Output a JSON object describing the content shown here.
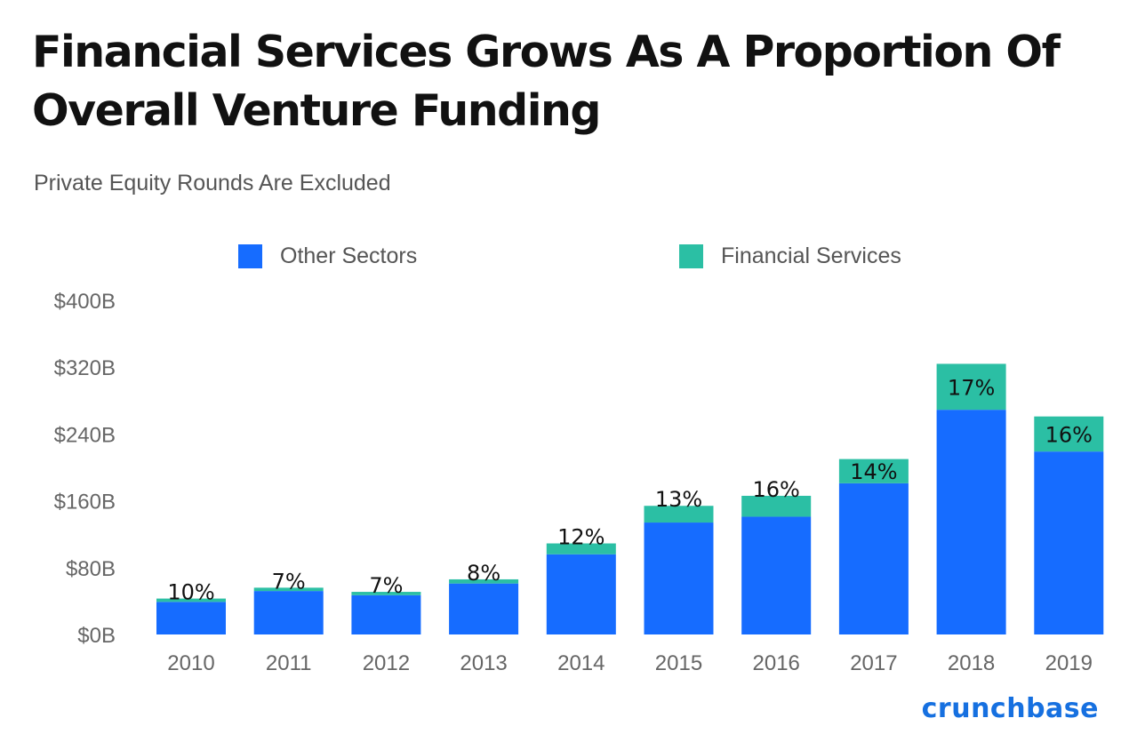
{
  "title": "Financial Services Grows As A Proportion Of Overall Venture Funding",
  "subtitle": "Private Equity Rounds Are Excluded",
  "brand": "crunchbase",
  "colors": {
    "other": "#166cff",
    "financial": "#2bbfa4"
  },
  "chart_data": {
    "type": "bar",
    "stacked": true,
    "categories": [
      "2010",
      "2011",
      "2012",
      "2013",
      "2014",
      "2015",
      "2016",
      "2017",
      "2018",
      "2019"
    ],
    "series": [
      {
        "name": "Other Sectors",
        "values": [
          39,
          52,
          47,
          61,
          96,
          134,
          141,
          181,
          269,
          219
        ]
      },
      {
        "name": "Financial Services",
        "values": [
          4,
          4,
          4,
          5,
          13,
          20,
          25,
          29,
          55,
          42
        ]
      }
    ],
    "data_labels": [
      "10%",
      "7%",
      "7%",
      "8%",
      "12%",
      "13%",
      "16%",
      "14%",
      "17%",
      "16%"
    ],
    "y_ticks": [
      "$0B",
      "$80B",
      "$160B",
      "$240B",
      "$320B",
      "$400B"
    ],
    "y_tick_values": [
      0,
      80,
      160,
      240,
      320,
      400
    ],
    "ylim": [
      0,
      400
    ],
    "grid": false,
    "legend_position": "top"
  }
}
